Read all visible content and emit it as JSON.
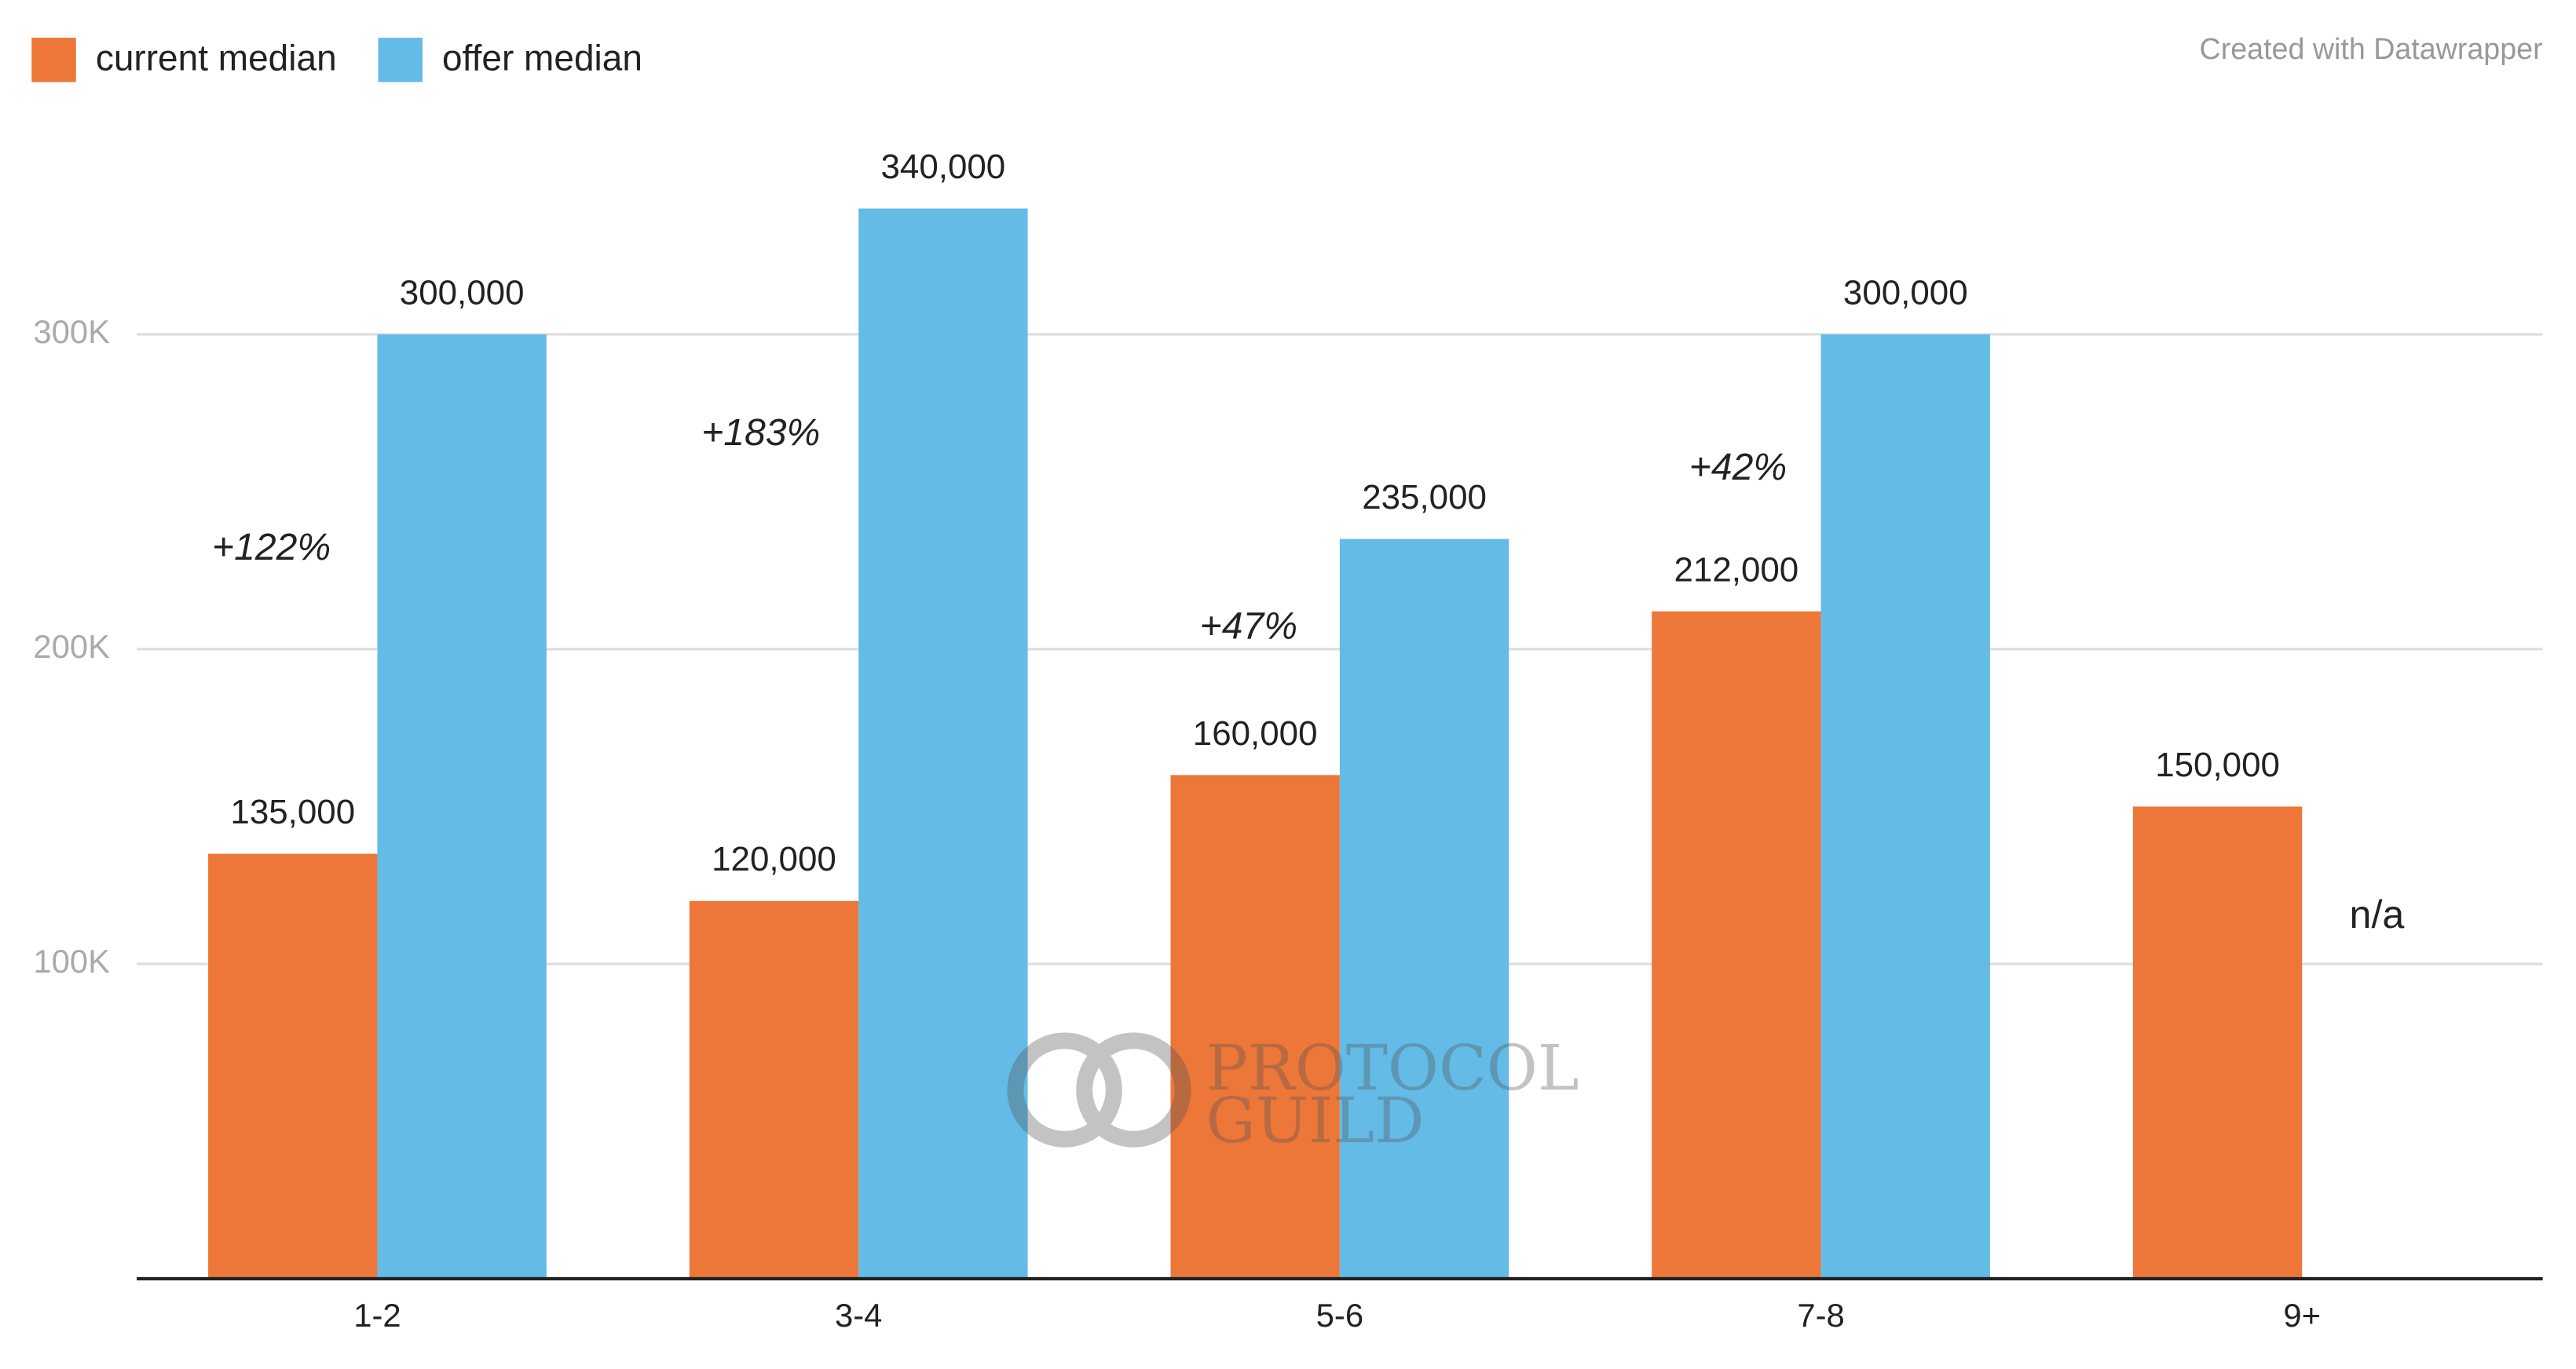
{
  "chart_data": {
    "type": "bar",
    "categories": [
      "1-2",
      "3-4",
      "5-6",
      "7-8",
      "9+"
    ],
    "series": [
      {
        "name": "current median",
        "color": "#ed7639",
        "values": [
          135000,
          120000,
          160000,
          212000,
          150000
        ],
        "value_labels": [
          "135,000",
          "120,000",
          "160,000",
          "212,000",
          "150,000"
        ]
      },
      {
        "name": "offer median",
        "color": "#63bbe6",
        "values": [
          300000,
          340000,
          235000,
          300000,
          null
        ],
        "value_labels": [
          "300,000",
          "340,000",
          "235,000",
          "300,000",
          null
        ]
      }
    ],
    "annotations": [
      "+122%",
      "+183%",
      "+47%",
      "+42%",
      "n/a"
    ],
    "ylim": [
      0,
      340000
    ],
    "yticks": [
      {
        "value": 100000,
        "label": "100K"
      },
      {
        "value": 200000,
        "label": "200K"
      },
      {
        "value": 300000,
        "label": "300K"
      }
    ],
    "grid": true,
    "legend": "top-left",
    "credit": "Created with Datawrapper",
    "watermark": [
      "PROTOCOL",
      "GUILD"
    ]
  }
}
